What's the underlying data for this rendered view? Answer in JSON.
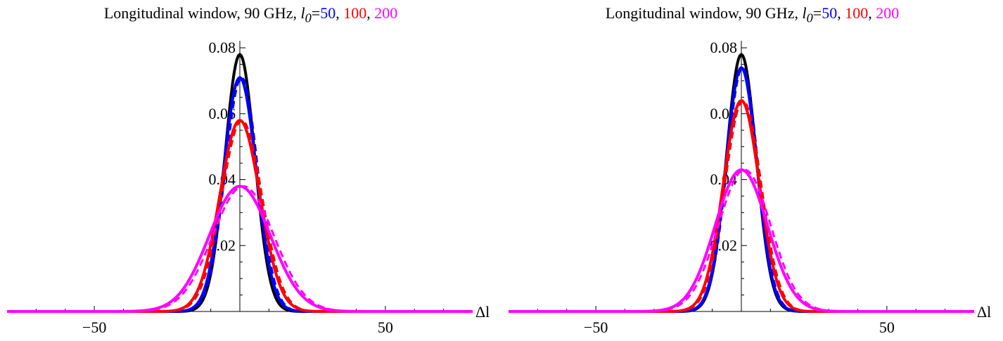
{
  "chart_data": [
    {
      "type": "line",
      "title": {
        "prefix": "Longitudinal window, 90 GHz, ",
        "symbol": "l",
        "subscript": "0",
        "eq": "=",
        "v1": "50",
        "sep1": ", ",
        "v2": "100",
        "sep2": ", ",
        "v3": "200"
      },
      "xlabel": "Δl",
      "ylabel": "",
      "xlim": [
        -80,
        80
      ],
      "ylim": [
        0,
        0.08
      ],
      "x_ticks": [
        {
          "value": -50,
          "label": "−50"
        },
        {
          "value": 50,
          "label": "50"
        }
      ],
      "y_ticks": [
        {
          "value": 0.02,
          "label": "0.02"
        },
        {
          "value": 0.04,
          "label": "0.04"
        },
        {
          "value": 0.06,
          "label": "0.06"
        },
        {
          "value": 0.08,
          "label": "0.08"
        }
      ],
      "series": [
        {
          "color": "#000000",
          "style": "solid",
          "peak": 0.078,
          "sigma": 5.1,
          "mu": 0
        },
        {
          "color": "#0000ff",
          "style": "solid",
          "peak": 0.071,
          "sigma": 5.6,
          "mu": 0
        },
        {
          "color": "#0000ff",
          "style": "dashed",
          "peak": 0.071,
          "sigma": 5.6,
          "mu": 0.6
        },
        {
          "color": "#ff0000",
          "style": "solid",
          "peak": 0.058,
          "sigma": 6.9,
          "mu": 0
        },
        {
          "color": "#ff0000",
          "style": "dashed",
          "peak": 0.058,
          "sigma": 6.9,
          "mu": 0.7
        },
        {
          "color": "#ff00ff",
          "style": "solid",
          "peak": 0.038,
          "sigma": 10.5,
          "mu": 0
        },
        {
          "color": "#ff00ff",
          "style": "dashed",
          "peak": 0.038,
          "sigma": 10.5,
          "mu": 1.2
        }
      ]
    },
    {
      "type": "line",
      "title": {
        "prefix": "Longitudinal window, 90 GHz, ",
        "symbol": "l",
        "subscript": "0",
        "eq": "=",
        "v1": "50",
        "sep1": ", ",
        "v2": "100",
        "sep2": ", ",
        "v3": "200"
      },
      "xlabel": "Δl",
      "ylabel": "",
      "xlim": [
        -80,
        80
      ],
      "ylim": [
        0,
        0.08
      ],
      "x_ticks": [
        {
          "value": -50,
          "label": "−50"
        },
        {
          "value": 50,
          "label": "50"
        }
      ],
      "y_ticks": [
        {
          "value": 0.02,
          "label": "0.02"
        },
        {
          "value": 0.04,
          "label": "0.04"
        },
        {
          "value": 0.06,
          "label": "0.06"
        },
        {
          "value": 0.08,
          "label": "0.08"
        }
      ],
      "series": [
        {
          "color": "#000000",
          "style": "solid",
          "peak": 0.078,
          "sigma": 5.1,
          "mu": 0
        },
        {
          "color": "#0000ff",
          "style": "solid",
          "peak": 0.074,
          "sigma": 5.3,
          "mu": 0
        },
        {
          "color": "#0000ff",
          "style": "dashed",
          "peak": 0.074,
          "sigma": 5.3,
          "mu": 0.4
        },
        {
          "color": "#ff0000",
          "style": "solid",
          "peak": 0.064,
          "sigma": 6.2,
          "mu": 0
        },
        {
          "color": "#ff0000",
          "style": "dashed",
          "peak": 0.064,
          "sigma": 6.2,
          "mu": 0.6
        },
        {
          "color": "#ff00ff",
          "style": "solid",
          "peak": 0.043,
          "sigma": 9.0,
          "mu": 0
        },
        {
          "color": "#ff00ff",
          "style": "dashed",
          "peak": 0.043,
          "sigma": 9.0,
          "mu": 1.1
        }
      ]
    }
  ]
}
